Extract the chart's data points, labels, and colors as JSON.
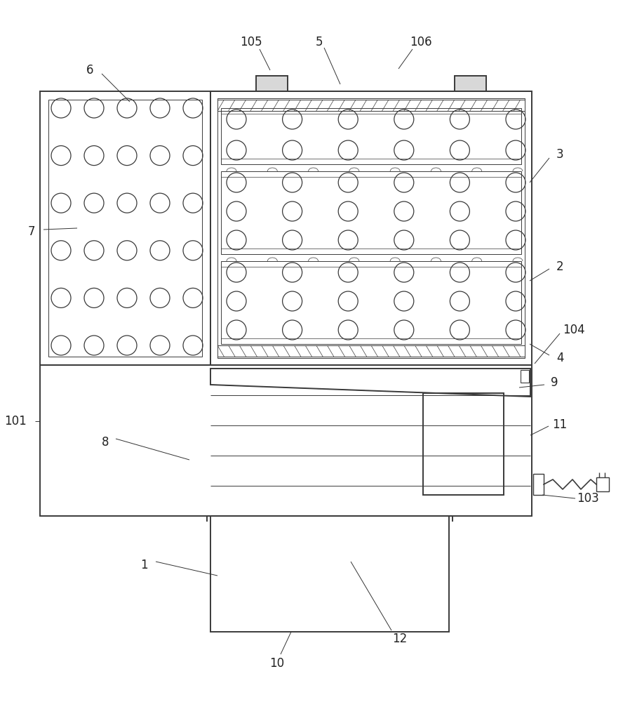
{
  "bg_color": "#ffffff",
  "line_color": "#3a3a3a",
  "lw_main": 1.4,
  "lw_thin": 0.7,
  "lw_hair": 0.5,
  "label_fontsize": 12,
  "fig_width": 8.98,
  "fig_height": 10.0
}
